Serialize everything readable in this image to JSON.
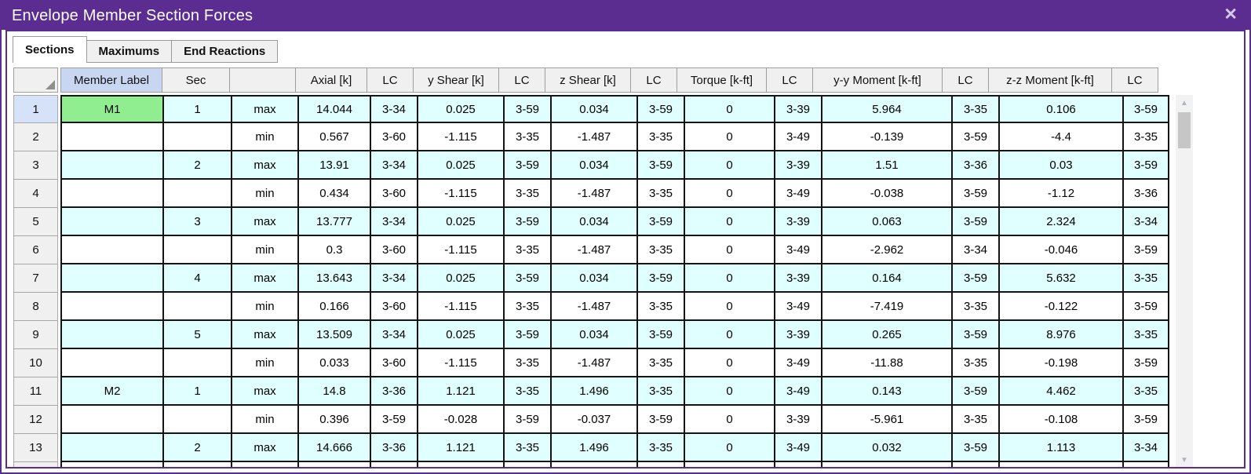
{
  "window": {
    "title": "Envelope Member Section Forces",
    "close_glyph": "✕"
  },
  "tabs": [
    {
      "label": "Sections",
      "active": true
    },
    {
      "label": "Maximums",
      "active": false
    },
    {
      "label": "End Reactions",
      "active": false
    }
  ],
  "table": {
    "columns": [
      "",
      "Member Label",
      "Sec",
      "",
      "Axial [k]",
      "LC",
      "y Shear [k]",
      "LC",
      "z Shear [k]",
      "LC",
      "Torque [k-ft]",
      "LC",
      "y-y Moment [k-ft]",
      "LC",
      "z-z Moment [k-ft]",
      "LC"
    ],
    "selected_column_index": 1,
    "rows": [
      {
        "num": "1",
        "selected": true,
        "cells": [
          "M1",
          "1",
          "max",
          "14.044",
          "3-34",
          "0.025",
          "3-59",
          "0.034",
          "3-59",
          "0",
          "3-39",
          "5.964",
          "3-35",
          "0.106",
          "3-59"
        ]
      },
      {
        "num": "2",
        "cells": [
          "",
          "",
          "min",
          "0.567",
          "3-60",
          "-1.115",
          "3-35",
          "-1.487",
          "3-35",
          "0",
          "3-49",
          "-0.139",
          "3-59",
          "-4.4",
          "3-35"
        ]
      },
      {
        "num": "3",
        "cells": [
          "",
          "2",
          "max",
          "13.91",
          "3-34",
          "0.025",
          "3-59",
          "0.034",
          "3-59",
          "0",
          "3-39",
          "1.51",
          "3-36",
          "0.03",
          "3-59"
        ]
      },
      {
        "num": "4",
        "cells": [
          "",
          "",
          "min",
          "0.434",
          "3-60",
          "-1.115",
          "3-35",
          "-1.487",
          "3-35",
          "0",
          "3-49",
          "-0.038",
          "3-59",
          "-1.12",
          "3-36"
        ]
      },
      {
        "num": "5",
        "cells": [
          "",
          "3",
          "max",
          "13.777",
          "3-34",
          "0.025",
          "3-59",
          "0.034",
          "3-59",
          "0",
          "3-39",
          "0.063",
          "3-59",
          "2.324",
          "3-34"
        ]
      },
      {
        "num": "6",
        "cells": [
          "",
          "",
          "min",
          "0.3",
          "3-60",
          "-1.115",
          "3-35",
          "-1.487",
          "3-35",
          "0",
          "3-49",
          "-2.962",
          "3-34",
          "-0.046",
          "3-59"
        ]
      },
      {
        "num": "7",
        "cells": [
          "",
          "4",
          "max",
          "13.643",
          "3-34",
          "0.025",
          "3-59",
          "0.034",
          "3-59",
          "0",
          "3-39",
          "0.164",
          "3-59",
          "5.632",
          "3-35"
        ]
      },
      {
        "num": "8",
        "cells": [
          "",
          "",
          "min",
          "0.166",
          "3-60",
          "-1.115",
          "3-35",
          "-1.487",
          "3-35",
          "0",
          "3-49",
          "-7.419",
          "3-35",
          "-0.122",
          "3-59"
        ]
      },
      {
        "num": "9",
        "cells": [
          "",
          "5",
          "max",
          "13.509",
          "3-34",
          "0.025",
          "3-59",
          "0.034",
          "3-59",
          "0",
          "3-39",
          "0.265",
          "3-59",
          "8.976",
          "3-35"
        ]
      },
      {
        "num": "10",
        "cells": [
          "",
          "",
          "min",
          "0.033",
          "3-60",
          "-1.115",
          "3-35",
          "-1.487",
          "3-35",
          "0",
          "3-49",
          "-11.88",
          "3-35",
          "-0.198",
          "3-59"
        ]
      },
      {
        "num": "11",
        "cells": [
          "M2",
          "1",
          "max",
          "14.8",
          "3-36",
          "1.121",
          "3-35",
          "1.496",
          "3-35",
          "0",
          "3-49",
          "0.143",
          "3-59",
          "4.462",
          "3-35"
        ]
      },
      {
        "num": "12",
        "cells": [
          "",
          "",
          "min",
          "0.396",
          "3-59",
          "-0.028",
          "3-59",
          "-0.037",
          "3-59",
          "0",
          "3-39",
          "-5.961",
          "3-35",
          "-0.108",
          "3-59"
        ]
      },
      {
        "num": "13",
        "cells": [
          "",
          "2",
          "max",
          "14.666",
          "3-36",
          "1.121",
          "3-35",
          "1.496",
          "3-35",
          "0",
          "3-49",
          "0.032",
          "3-59",
          "1.113",
          "3-34"
        ]
      }
    ],
    "partial_row_visible": true
  },
  "scrollbar": {
    "up_glyph": "▲",
    "down_glyph": "▼"
  },
  "colors": {
    "titlebar": "#5C2D91",
    "band": "#E0FFFF",
    "selected_cell": "#90EE90",
    "selected_header": "#C9D6F2",
    "selected_rownum": "#D5E2F8"
  }
}
